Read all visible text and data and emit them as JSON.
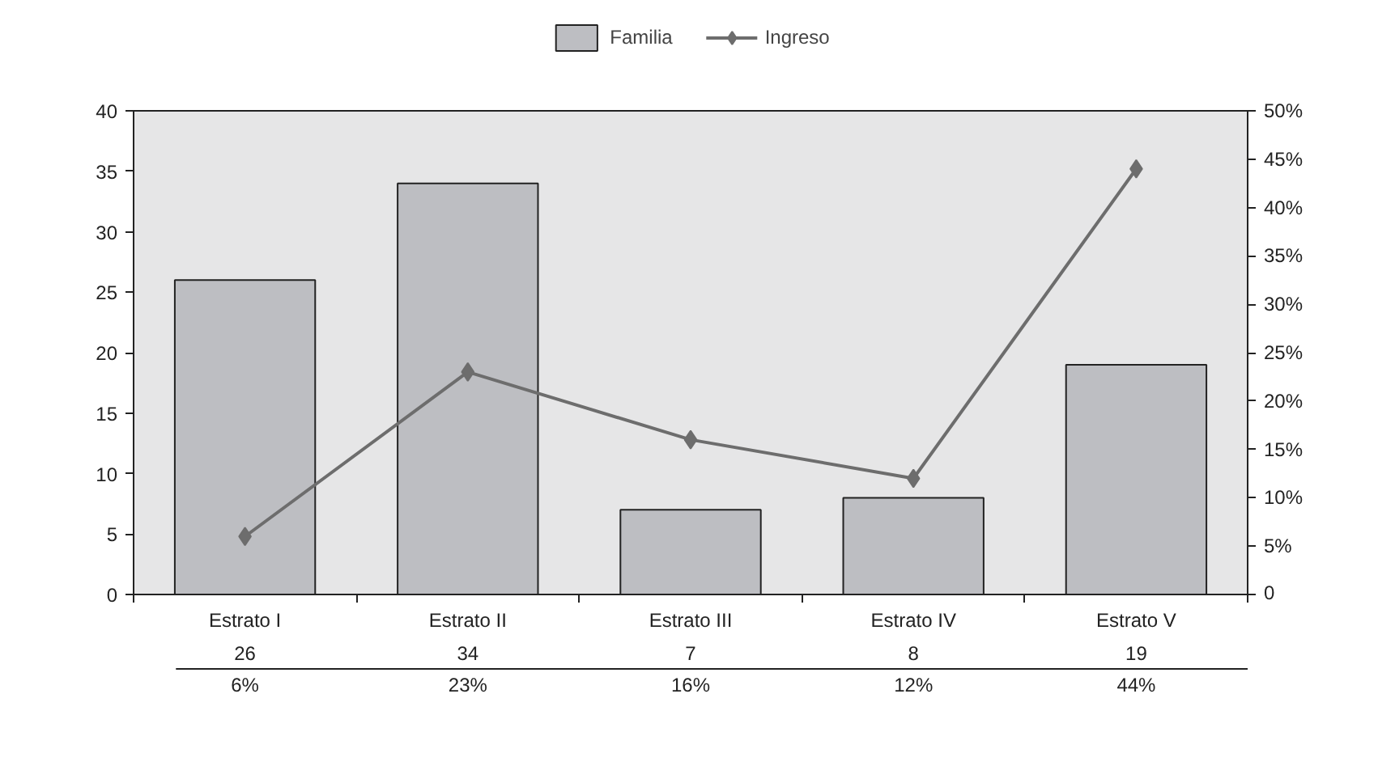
{
  "chart_data": {
    "type": "bar",
    "categories": [
      "Estrato I",
      "Estrato II",
      "Estrato III",
      "Estrato IV",
      "Estrato V"
    ],
    "series": [
      {
        "name": "Familia",
        "color": "#bdbec2",
        "values": [
          26,
          34,
          7,
          8,
          19
        ],
        "value_labels": [
          "26",
          "34",
          "7",
          "8",
          "19"
        ]
      },
      {
        "name": "Ingreso",
        "type": "line",
        "axis": "y2",
        "color": "#6d6d6d",
        "marker": "diamond",
        "values": [
          6,
          23,
          16,
          12,
          44
        ],
        "value_labels": [
          "6%",
          "23%",
          "16%",
          "12%",
          "44%"
        ]
      }
    ],
    "ylim": [
      0,
      40
    ],
    "yticks": [
      0,
      5,
      10,
      15,
      20,
      25,
      30,
      35,
      40
    ],
    "y2lim": [
      0,
      50
    ],
    "y2ticks": [
      {
        "value": 0,
        "label": "0"
      },
      {
        "value": 5,
        "label": "5%"
      },
      {
        "value": 10,
        "label": "10%"
      },
      {
        "value": 15,
        "label": "15%"
      },
      {
        "value": 20,
        "label": "20%"
      },
      {
        "value": 25,
        "label": "25%"
      },
      {
        "value": 30,
        "label": "30%"
      },
      {
        "value": 35,
        "label": "35%"
      },
      {
        "value": 40,
        "label": "40%"
      },
      {
        "value": 45,
        "label": "45%"
      },
      {
        "value": 50,
        "label": "50%"
      }
    ],
    "grid": false,
    "legend": "top"
  }
}
